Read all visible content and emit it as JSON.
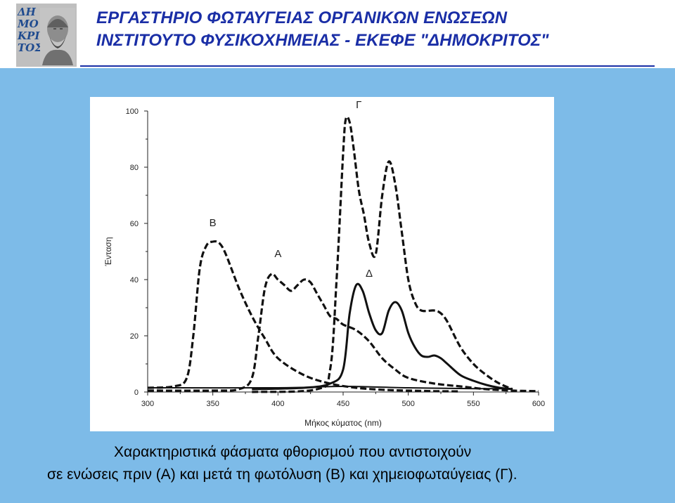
{
  "header": {
    "title_line1": "ΕΡΓΑΣΤΗΡΙΟ ΦΩΤΑΥΓΕΙΑΣ ΟΡΓΑΝΙΚΩΝ ΕΝΩΣΕΩΝ",
    "title_line2": "ΙΝΣΤΙΤΟΥΤΟ ΦΥΣΙΚΟΧΗΜΕΙΑΣ - ΕΚΕΦΕ \"ΔΗΜΟΚΡΙΤΟΣ\"",
    "logo_text": [
      "ΔΗ",
      "ΜΟ",
      "ΚΡΙ",
      "ΤΟΣ"
    ]
  },
  "caption": {
    "line1": "Χαρακτηριστικά φάσματα φθορισμού που αντιστοιχούν",
    "line2": "σε ενώσεις πριν (Α) και μετά τη φωτόλυση (Β) και χημειοφωταύγειας (Γ)."
  },
  "colors": {
    "title": "#1a2ea6",
    "panel": "#7dbbe8",
    "curve": "#111111"
  },
  "chart_data": {
    "type": "line",
    "title": "",
    "xlabel": "Μήκος κύματος (nm)",
    "ylabel": "Ένταση",
    "xlim": [
      300,
      600
    ],
    "ylim": [
      0,
      100
    ],
    "xticks": [
      300,
      350,
      400,
      450,
      500,
      550,
      600
    ],
    "yticks": [
      0,
      20,
      40,
      60,
      80,
      100
    ],
    "grid": false,
    "series": [
      {
        "name": "Α",
        "style": "dashed",
        "x": [
          300,
          350,
          370,
          380,
          385,
          390,
          395,
          400,
          405,
          410,
          415,
          420,
          425,
          430,
          435,
          440,
          445,
          450,
          460,
          470,
          480,
          490,
          500,
          520,
          540,
          560,
          580,
          600
        ],
        "y": [
          0.5,
          0.5,
          1,
          5,
          20,
          37,
          42,
          40,
          38,
          36,
          38,
          40,
          39,
          35,
          31,
          27,
          26,
          24,
          22,
          18,
          12,
          8,
          5,
          3,
          2,
          1,
          0.5,
          0.3
        ]
      },
      {
        "name": "Β",
        "style": "dashed",
        "x": [
          300,
          320,
          330,
          335,
          340,
          345,
          350,
          355,
          360,
          370,
          380,
          390,
          400,
          420,
          440,
          460,
          480,
          500,
          520,
          540
        ],
        "y": [
          1.5,
          2,
          5,
          20,
          44,
          52,
          53.5,
          53,
          49,
          37,
          27,
          19,
          12,
          6,
          3,
          1.5,
          0.8,
          0.5,
          0.3,
          0.2
        ]
      },
      {
        "name": "Γ",
        "style": "dashed",
        "x": [
          380,
          430,
          440,
          445,
          450,
          452,
          455,
          458,
          462,
          466,
          470,
          475,
          480,
          485,
          490,
          495,
          500,
          505,
          510,
          520,
          525,
          530,
          540,
          550,
          560,
          570,
          580
        ],
        "y": [
          0,
          1,
          8,
          40,
          85,
          97,
          96,
          87,
          72,
          63,
          53,
          49,
          70,
          82,
          74,
          57,
          40,
          32,
          29,
          29,
          28,
          25,
          16,
          10,
          6,
          3,
          1
        ]
      },
      {
        "name": "Δ",
        "style": "solid",
        "x": [
          380,
          420,
          440,
          450,
          455,
          460,
          465,
          470,
          475,
          480,
          485,
          490,
          495,
          500,
          505,
          510,
          515,
          520,
          525,
          530,
          540,
          550,
          560,
          570,
          580
        ],
        "y": [
          1,
          1.5,
          3,
          8,
          28,
          38,
          36,
          28,
          22,
          21,
          29,
          32,
          29,
          21,
          16,
          13,
          12.5,
          13,
          12,
          10,
          6,
          4,
          2.5,
          1.5,
          1
        ]
      },
      {
        "name": "",
        "style": "solid",
        "x": [
          300,
          400,
          450,
          500,
          550,
          580
        ],
        "y": [
          1.5,
          1.5,
          2,
          1.5,
          1.2,
          1.2
        ]
      }
    ],
    "labels": [
      {
        "text": "Β",
        "x": 350,
        "y": 59
      },
      {
        "text": "Α",
        "x": 400,
        "y": 48
      },
      {
        "text": "Γ",
        "x": 462,
        "y": 101
      },
      {
        "text": "Δ",
        "x": 470,
        "y": 41
      }
    ]
  }
}
